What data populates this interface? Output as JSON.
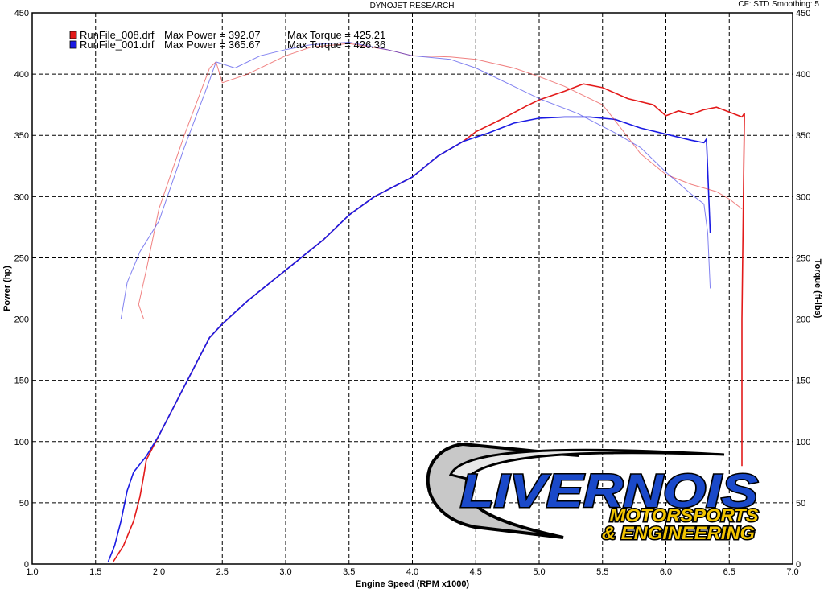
{
  "header": {
    "title": "DYNOJET RESEARCH",
    "right": "CF: STD   Smoothing: 5"
  },
  "logo": {
    "line1": "LIVERNOIS",
    "line2": "MOTORSPORTS",
    "line3": "& ENGINEERING",
    "colors": {
      "blue": "#1a49c9",
      "yellow": "#f2c400",
      "outline": "#000000",
      "swoosh": "#c8c8c8"
    }
  },
  "chart_data": {
    "type": "line",
    "title": "DYNOJET RESEARCH",
    "xlabel": "Engine Speed (RPM x1000)",
    "ylabel": "Power (hp)",
    "y2label": "Torque (ft-lbs)",
    "xlim": [
      1.0,
      7.0
    ],
    "ylim": [
      0,
      450
    ],
    "y2lim": [
      0,
      450
    ],
    "xticks": [
      "1.0",
      "1.5",
      "2.0",
      "2.5",
      "3.0",
      "3.5",
      "4.0",
      "4.5",
      "5.0",
      "5.5",
      "6.0",
      "6.5",
      "7.0"
    ],
    "yticks": [
      "0",
      "50",
      "100",
      "150",
      "200",
      "250",
      "300",
      "350",
      "400",
      "450"
    ],
    "y2ticks": [
      "0",
      "50",
      "100",
      "150",
      "200",
      "250",
      "300",
      "350",
      "400",
      "450"
    ],
    "grid": true,
    "legend_position": "top-left",
    "legend": [
      {
        "file": "RunFile_008.drf",
        "power_label": "Max Power = 392.07",
        "torque_label": "Max Torque = 425.21",
        "color": "#e31a1a"
      },
      {
        "file": "RunFile_001.drf",
        "power_label": "Max Power = 365.67",
        "torque_label": "Max Torque = 426.36",
        "color": "#1a1ae3"
      }
    ],
    "series": [
      {
        "name": "RunFile_008.drf",
        "measure": "power",
        "color": "#e31a1a",
        "points": [
          [
            1.64,
            2
          ],
          [
            1.72,
            15
          ],
          [
            1.8,
            35
          ],
          [
            1.85,
            55
          ],
          [
            1.88,
            72
          ],
          [
            1.9,
            85
          ],
          [
            2.0,
            105
          ],
          [
            2.2,
            145
          ],
          [
            2.4,
            185
          ],
          [
            2.5,
            196
          ],
          [
            2.7,
            215
          ],
          [
            3.0,
            240
          ],
          [
            3.3,
            265
          ],
          [
            3.5,
            285
          ],
          [
            3.7,
            300
          ],
          [
            4.0,
            316
          ],
          [
            4.2,
            333
          ],
          [
            4.4,
            345
          ],
          [
            4.5,
            353
          ],
          [
            4.7,
            363
          ],
          [
            4.9,
            374
          ],
          [
            5.0,
            379
          ],
          [
            5.2,
            386
          ],
          [
            5.35,
            392
          ],
          [
            5.5,
            389
          ],
          [
            5.7,
            380
          ],
          [
            5.9,
            375
          ],
          [
            6.0,
            366
          ],
          [
            6.1,
            370
          ],
          [
            6.2,
            367
          ],
          [
            6.3,
            371
          ],
          [
            6.4,
            373
          ],
          [
            6.5,
            369
          ],
          [
            6.6,
            365
          ],
          [
            6.62,
            368
          ],
          [
            6.6,
            200
          ],
          [
            6.6,
            80
          ]
        ]
      },
      {
        "name": "RunFile_001.drf",
        "measure": "power",
        "color": "#1a1ae3",
        "points": [
          [
            1.6,
            2
          ],
          [
            1.65,
            15
          ],
          [
            1.7,
            35
          ],
          [
            1.75,
            60
          ],
          [
            1.8,
            75
          ],
          [
            1.9,
            88
          ],
          [
            2.0,
            105
          ],
          [
            2.2,
            145
          ],
          [
            2.4,
            185
          ],
          [
            2.5,
            196
          ],
          [
            2.7,
            215
          ],
          [
            3.0,
            240
          ],
          [
            3.3,
            265
          ],
          [
            3.5,
            285
          ],
          [
            3.7,
            300
          ],
          [
            4.0,
            316
          ],
          [
            4.2,
            333
          ],
          [
            4.4,
            345
          ],
          [
            4.6,
            352
          ],
          [
            4.8,
            360
          ],
          [
            5.0,
            364
          ],
          [
            5.2,
            365
          ],
          [
            5.4,
            365
          ],
          [
            5.6,
            363
          ],
          [
            5.8,
            356
          ],
          [
            6.0,
            351
          ],
          [
            6.2,
            346
          ],
          [
            6.3,
            344
          ],
          [
            6.32,
            347
          ],
          [
            6.35,
            270
          ]
        ]
      },
      {
        "name": "RunFile_008.drf",
        "measure": "torque",
        "color": "#e31a1a",
        "points": [
          [
            1.88,
            200
          ],
          [
            1.84,
            212
          ],
          [
            1.9,
            240
          ],
          [
            2.0,
            290
          ],
          [
            2.2,
            350
          ],
          [
            2.4,
            405
          ],
          [
            2.45,
            410
          ],
          [
            2.5,
            393
          ],
          [
            2.7,
            400
          ],
          [
            3.0,
            415
          ],
          [
            3.2,
            422
          ],
          [
            3.5,
            425
          ],
          [
            3.8,
            420
          ],
          [
            4.0,
            415
          ],
          [
            4.3,
            414
          ],
          [
            4.5,
            412
          ],
          [
            4.8,
            405
          ],
          [
            5.0,
            398
          ],
          [
            5.2,
            390
          ],
          [
            5.4,
            380
          ],
          [
            5.5,
            375
          ],
          [
            5.6,
            362
          ],
          [
            5.8,
            335
          ],
          [
            6.0,
            318
          ],
          [
            6.2,
            310
          ],
          [
            6.4,
            304
          ],
          [
            6.5,
            298
          ],
          [
            6.6,
            290
          ]
        ]
      },
      {
        "name": "RunFile_001.drf",
        "measure": "torque",
        "color": "#1a1ae3",
        "points": [
          [
            1.7,
            200
          ],
          [
            1.75,
            230
          ],
          [
            1.85,
            255
          ],
          [
            2.0,
            280
          ],
          [
            2.2,
            340
          ],
          [
            2.4,
            395
          ],
          [
            2.45,
            410
          ],
          [
            2.6,
            405
          ],
          [
            2.8,
            415
          ],
          [
            3.0,
            420
          ],
          [
            3.2,
            424
          ],
          [
            3.5,
            426
          ],
          [
            3.8,
            420
          ],
          [
            4.0,
            415
          ],
          [
            4.3,
            412
          ],
          [
            4.5,
            405
          ],
          [
            4.8,
            390
          ],
          [
            5.0,
            380
          ],
          [
            5.3,
            368
          ],
          [
            5.6,
            352
          ],
          [
            5.8,
            340
          ],
          [
            6.0,
            320
          ],
          [
            6.2,
            302
          ],
          [
            6.3,
            294
          ],
          [
            6.33,
            270
          ],
          [
            6.35,
            225
          ]
        ]
      }
    ]
  }
}
